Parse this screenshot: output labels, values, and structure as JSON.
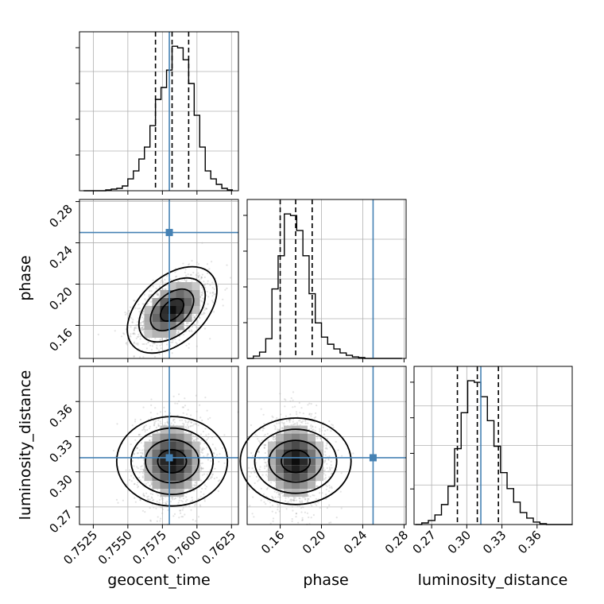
{
  "colors": {
    "truth": "#4682b4",
    "hist": "#000000",
    "grid": "#b0b0b0",
    "scatter": "#7f7f7f"
  },
  "labels": {
    "x": [
      "geocent_time",
      "phase",
      "luminosity_distance"
    ],
    "y_row2": "phase",
    "y_row3": "luminosity_distance"
  },
  "ticks": {
    "geocent_time": [
      "0.7525",
      "0.7550",
      "0.7575",
      "0.7600",
      "0.7625"
    ],
    "phase": [
      "0.16",
      "0.20",
      "0.24",
      "0.28"
    ],
    "luminosity_distance": [
      "0.27",
      "0.30",
      "0.33",
      "0.36"
    ]
  },
  "chart_data": {
    "type": "corner",
    "parameters": [
      "geocent_time",
      "phase",
      "luminosity_distance"
    ],
    "ranges": {
      "geocent_time": [
        0.7515,
        0.763
      ],
      "phase": [
        0.128,
        0.282
      ],
      "luminosity_distance": [
        0.255,
        0.39
      ]
    },
    "truths": {
      "geocent_time": 0.758,
      "phase": 0.25,
      "luminosity_distance": 0.312
    },
    "quantiles": {
      "geocent_time": [
        0.757,
        0.7582,
        0.7594
      ],
      "phase": [
        0.16,
        0.175,
        0.191
      ],
      "luminosity_distance": [
        0.292,
        0.309,
        0.327
      ]
    },
    "histograms": {
      "geocent_time": {
        "edges": [
          0.7518,
          0.7522,
          0.7526,
          0.753,
          0.7534,
          0.7538,
          0.7542,
          0.7546,
          0.755,
          0.7554,
          0.7558,
          0.7562,
          0.7566,
          0.757,
          0.7574,
          0.7578,
          0.7582,
          0.7586,
          0.759,
          0.7594,
          0.7598,
          0.7602,
          0.7606,
          0.761,
          0.7614,
          0.7618,
          0.7622,
          0.7626
        ],
        "counts": [
          0,
          0,
          0,
          0,
          1,
          2,
          3,
          6,
          15,
          25,
          40,
          55,
          82,
          115,
          130,
          152,
          182,
          180,
          165,
          135,
          95,
          55,
          25,
          15,
          8,
          3,
          1
        ]
      },
      "phase": {
        "edges": [
          0.128,
          0.134,
          0.14,
          0.146,
          0.152,
          0.158,
          0.164,
          0.17,
          0.176,
          0.182,
          0.188,
          0.194,
          0.2,
          0.206,
          0.212,
          0.218,
          0.224,
          0.23,
          0.236,
          0.242,
          0.248,
          0.254,
          0.26,
          0.266,
          0.272,
          0.278
        ],
        "counts": [
          0,
          3,
          8,
          25,
          88,
          130,
          183,
          181,
          162,
          130,
          82,
          45,
          27,
          18,
          12,
          7,
          4,
          2,
          1,
          0,
          0,
          0,
          0,
          0,
          0
        ]
      },
      "luminosity_distance": {
        "edges": [
          0.256,
          0.2616,
          0.2672,
          0.2728,
          0.2784,
          0.284,
          0.2896,
          0.2952,
          0.3008,
          0.3064,
          0.312,
          0.3176,
          0.3232,
          0.3288,
          0.3344,
          0.34,
          0.3456,
          0.3512,
          0.3568,
          0.3624,
          0.368,
          0.3736,
          0.3792,
          0.3848,
          0.3904
        ],
        "counts": [
          0,
          2,
          5,
          12,
          25,
          48,
          95,
          140,
          180,
          178,
          160,
          130,
          98,
          65,
          45,
          28,
          15,
          8,
          3,
          1,
          0,
          0,
          0,
          0
        ]
      }
    },
    "correlations": {
      "phase_vs_geocent_time": 0.45,
      "luminosity_distance_vs_geocent_time": 0.0,
      "luminosity_distance_vs_phase": 0.0
    },
    "grid": true
  }
}
